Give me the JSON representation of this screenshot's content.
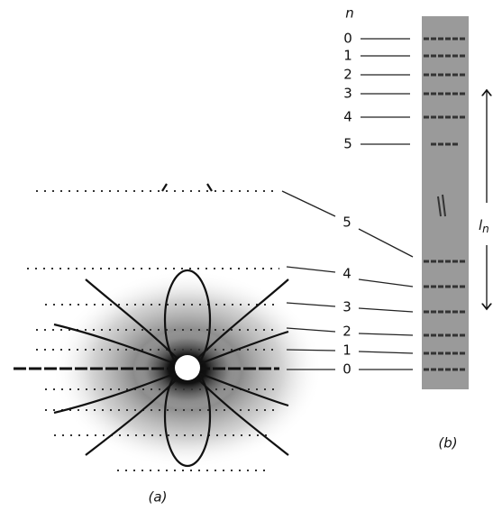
{
  "panel_a": {
    "orders": [
      "5",
      "4",
      "3",
      "2",
      "1",
      "0"
    ],
    "caption": "(a)"
  },
  "panel_b": {
    "index_label": "n",
    "orders": [
      "0",
      "1",
      "2",
      "3",
      "4",
      "5"
    ],
    "caption": "(b)",
    "spacing_label": {
      "symbol": "l",
      "subscript": "n"
    }
  }
}
